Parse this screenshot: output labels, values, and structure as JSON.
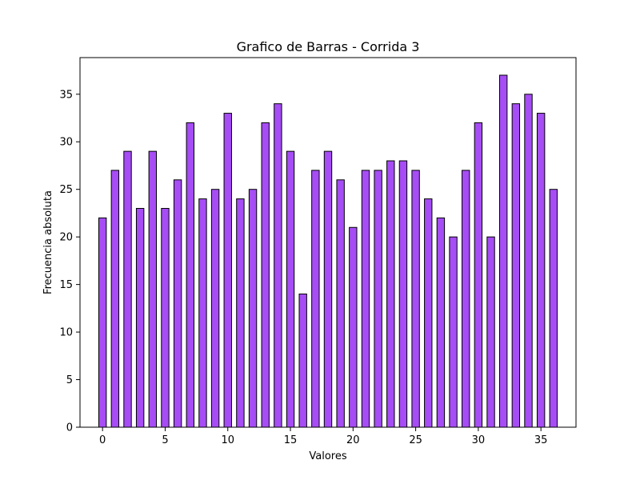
{
  "chart_data": {
    "type": "bar",
    "title": "Grafico de Barras - Corrida 3",
    "xlabel": "Valores",
    "ylabel": "Frecuencia absoluta",
    "x": [
      0,
      1,
      2,
      3,
      4,
      5,
      6,
      7,
      8,
      9,
      10,
      11,
      12,
      13,
      14,
      15,
      16,
      17,
      18,
      19,
      20,
      21,
      22,
      23,
      24,
      25,
      26,
      27,
      28,
      29,
      30,
      31,
      32,
      33,
      34,
      35,
      36
    ],
    "values": [
      22,
      27,
      29,
      23,
      29,
      23,
      26,
      32,
      24,
      25,
      33,
      24,
      25,
      32,
      34,
      29,
      14,
      27,
      29,
      26,
      21,
      27,
      27,
      28,
      28,
      27,
      24,
      22,
      20,
      27,
      32,
      20,
      37,
      34,
      35,
      33,
      25
    ],
    "xlim": [
      -1.8,
      37.8
    ],
    "ylim": [
      0,
      38.85
    ],
    "xticks": [
      0,
      5,
      10,
      15,
      20,
      25,
      30,
      35
    ],
    "yticks": [
      0,
      5,
      10,
      15,
      20,
      25,
      30,
      35
    ],
    "bar_width": 0.6,
    "bar_color": "#a64df5",
    "edge_color": "#000000",
    "grid": false,
    "legend": "none"
  }
}
